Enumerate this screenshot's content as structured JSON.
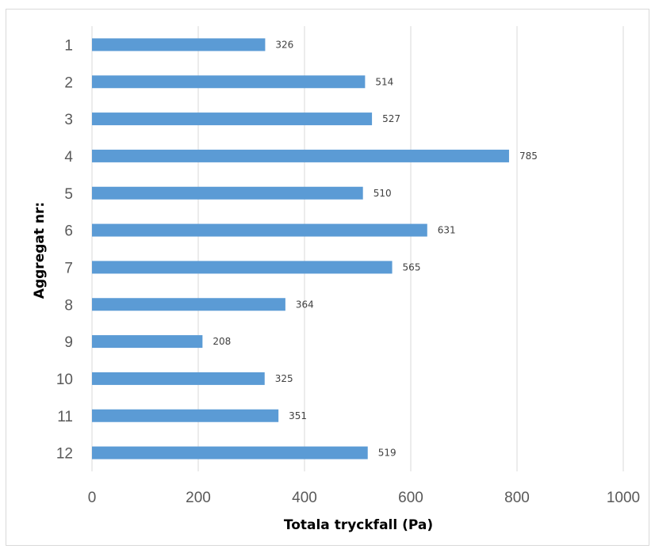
{
  "chart_data": {
    "type": "bar",
    "orientation": "horizontal",
    "categories": [
      "1",
      "2",
      "3",
      "4",
      "5",
      "6",
      "7",
      "8",
      "9",
      "10",
      "11",
      "12"
    ],
    "values": [
      326,
      514,
      527,
      785,
      510,
      631,
      565,
      364,
      208,
      325,
      351,
      519
    ],
    "xlabel": "Totala tryckfall (Pa)",
    "ylabel": "Aggregat nr:",
    "xlim": [
      0,
      1000
    ],
    "xticks": [
      0,
      200,
      400,
      600,
      800,
      1000
    ],
    "grid": "vertical",
    "data_labels": true,
    "bar_color": "#5b9bd5",
    "grid_color": "#d9d9d9"
  }
}
